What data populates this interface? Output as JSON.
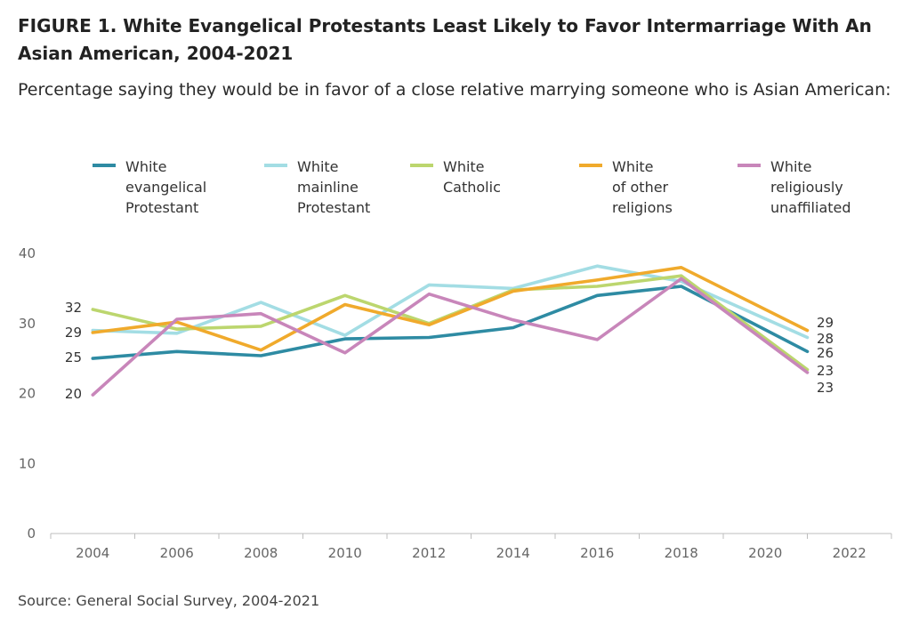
{
  "header": {
    "title": "FIGURE 1.  White Evangelical Protestants Least Likely to Favor Intermarriage With An Asian American, 2004-2021",
    "subtitle": "Percentage saying they would be in favor of a close relative marrying someone who is Asian American:"
  },
  "footer": {
    "source": "Source: General Social Survey, 2004-2021"
  },
  "chart_data": {
    "type": "line",
    "title": "FIGURE 1.  White Evangelical Protestants Least Likely to Favor Intermarriage With An Asian American, 2004-2021",
    "subtitle": "Percentage saying they would be in favor of a close relative marrying someone who is Asian American:",
    "xlabel": "",
    "ylabel": "",
    "x": [
      2004,
      2006,
      2008,
      2010,
      2012,
      2014,
      2016,
      2018,
      2021
    ],
    "xticks": [
      2004,
      2006,
      2008,
      2010,
      2012,
      2014,
      2016,
      2018,
      2020,
      2022
    ],
    "xlim": [
      2003,
      2023
    ],
    "yticks": [
      0,
      10,
      20,
      30,
      40
    ],
    "ylim": [
      0,
      40
    ],
    "grid": false,
    "legend_position": "top",
    "start_labels": [
      "32",
      "29",
      "25",
      "20"
    ],
    "end_labels": [
      "29",
      "28",
      "26",
      "23",
      "23"
    ],
    "series": [
      {
        "name": "White evangelical Protestant",
        "legend_lines": [
          "White",
          "evangelical",
          "Protestant"
        ],
        "color": "#2e8ba3",
        "values": [
          25,
          26,
          25.4,
          27.8,
          28,
          29.4,
          34,
          35.3,
          26
        ]
      },
      {
        "name": "White mainline Protestant",
        "legend_lines": [
          "White",
          "mainline",
          "Protestant"
        ],
        "color": "#a3dde4",
        "values": [
          29,
          28.6,
          33,
          28.3,
          35.5,
          35,
          38.2,
          36,
          28
        ]
      },
      {
        "name": "White Catholic",
        "legend_lines": [
          "White",
          "Catholic"
        ],
        "color": "#bcd66e",
        "values": [
          32,
          29.2,
          29.6,
          34,
          30,
          34.8,
          35.3,
          36.8,
          23.4
        ]
      },
      {
        "name": "White of other religions",
        "legend_lines": [
          "White",
          "of other",
          "religions"
        ],
        "color": "#f0aa2c",
        "values": [
          28.7,
          30.2,
          26.2,
          32.7,
          29.8,
          34.6,
          36.2,
          38,
          29
        ]
      },
      {
        "name": "White religiously unaffiliated",
        "legend_lines": [
          "White",
          "religiously",
          "unaffiliated"
        ],
        "color": "#c886ba",
        "values": [
          19.8,
          30.6,
          31.4,
          25.8,
          34.2,
          30.5,
          27.7,
          36.4,
          23
        ]
      }
    ]
  }
}
